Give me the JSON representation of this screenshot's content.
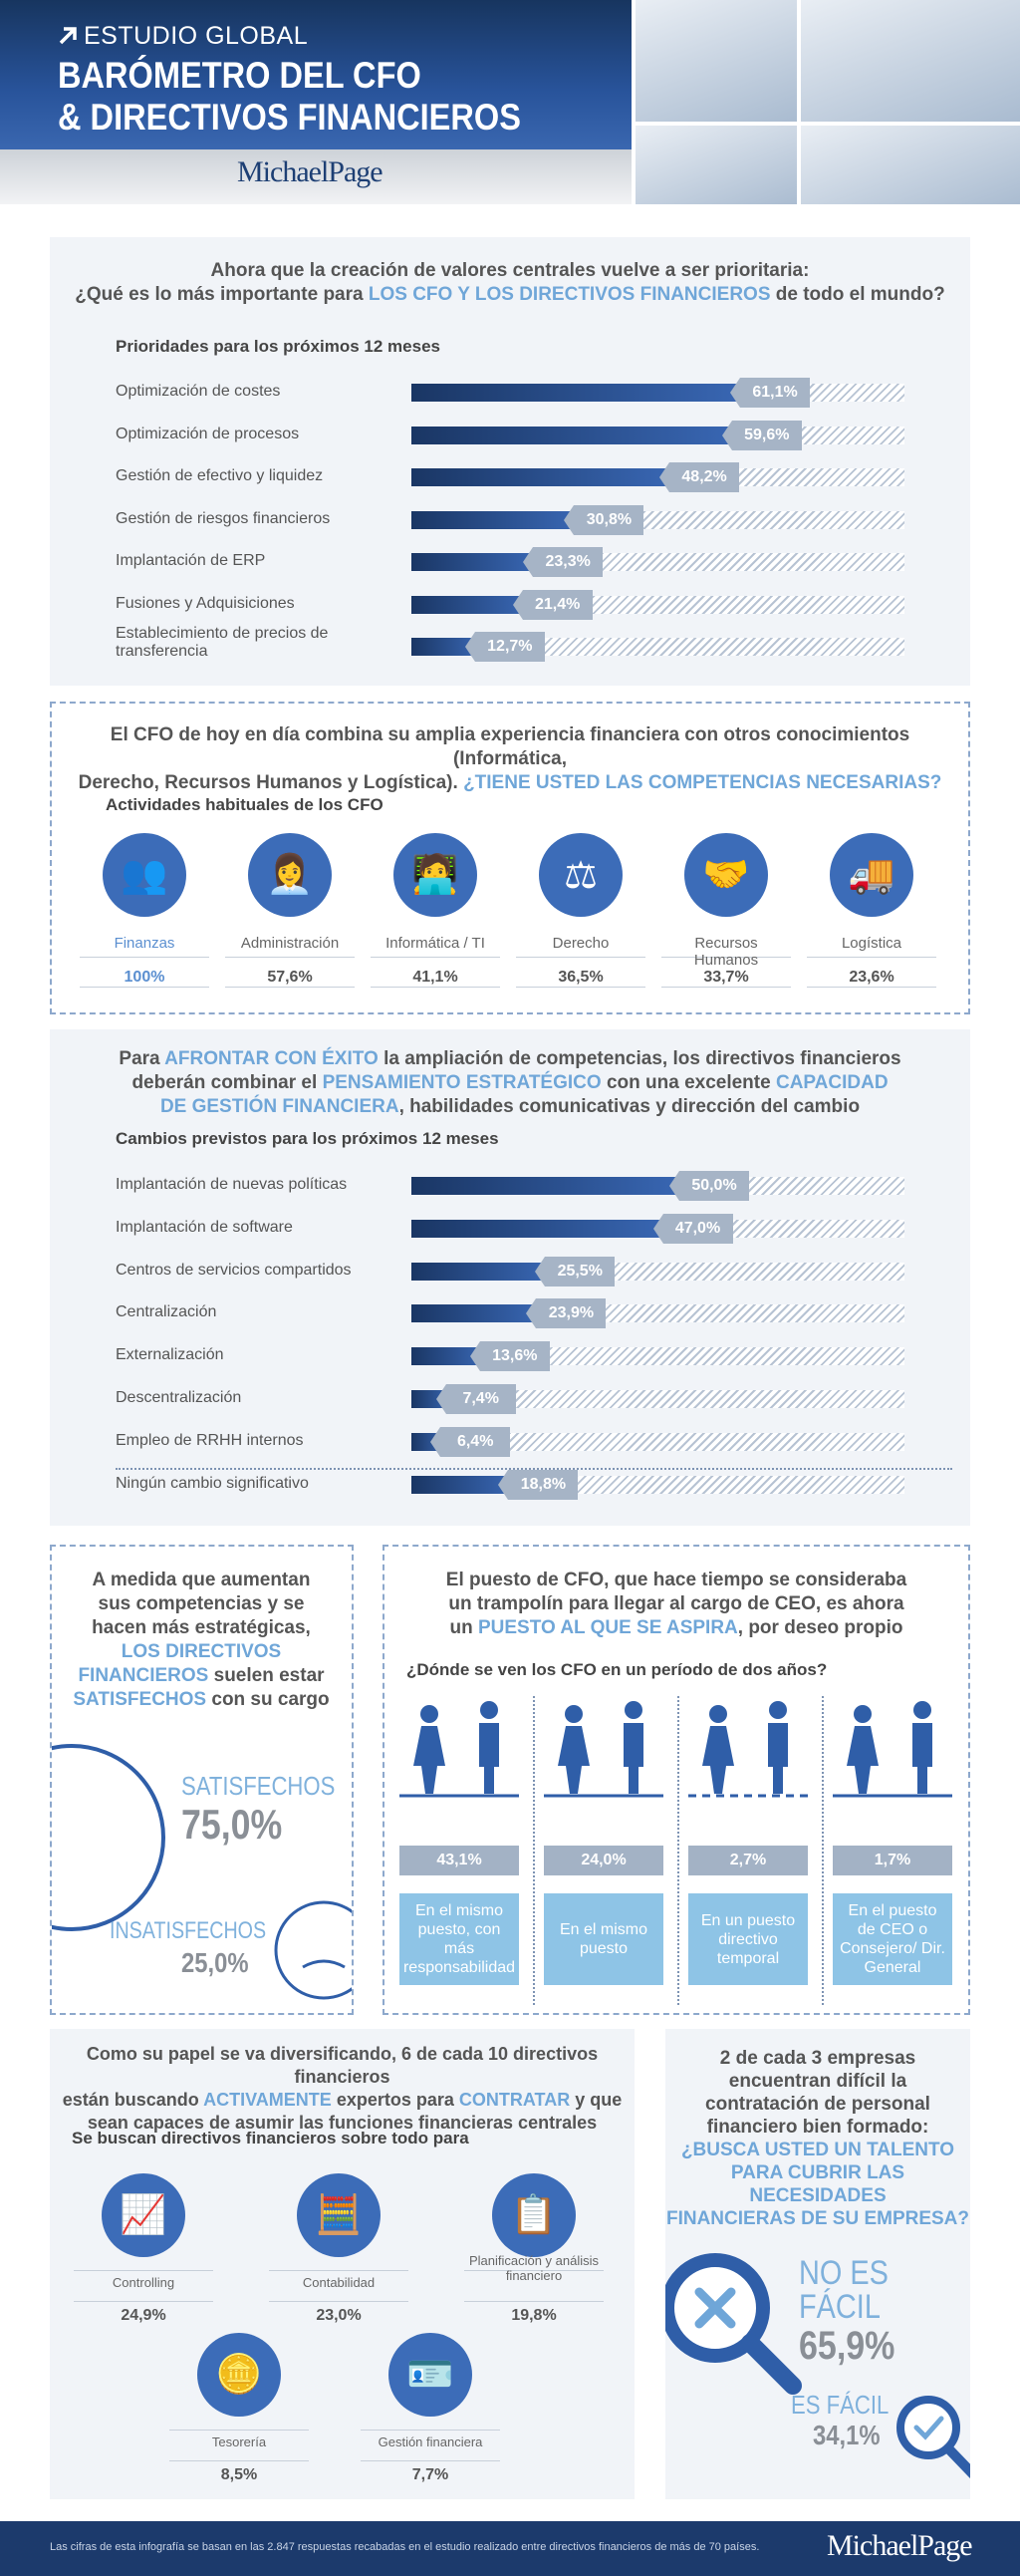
{
  "header": {
    "kicker": "ESTUDIO GLOBAL",
    "title_line1": "BARÓMETRO DEL CFO",
    "title_line2": "& DIRECTIVOS FINANCIEROS",
    "logo": "MichaelPage",
    "colors": {
      "navy": "#1c3a6c",
      "blue": "#3c6cb8",
      "highlight": "#6fa6d8"
    }
  },
  "priorities": {
    "q_line1": "Ahora que la creación de valores centrales vuelve a ser prioritaria:",
    "q_line2_a": "¿Qué es lo más importante para ",
    "q_line2_hl": "LOS CFO Y LOS DIRECTIVOS FINANCIEROS",
    "q_line2_b": " de todo el mundo?",
    "subtitle": "Prioridades para los próximos 12 meses",
    "items": [
      {
        "label": "Optimización de costes",
        "value": 61.1,
        "display": "61,1%"
      },
      {
        "label": "Optimización de procesos",
        "value": 59.6,
        "display": "59,6%"
      },
      {
        "label": "Gestión de efectivo y liquidez",
        "value": 48.2,
        "display": "48,2%"
      },
      {
        "label": "Gestión de riesgos financieros",
        "value": 30.8,
        "display": "30,8%"
      },
      {
        "label": "Implantación de ERP",
        "value": 23.3,
        "display": "23,3%"
      },
      {
        "label": "Fusiones y Adquisiciones",
        "value": 21.4,
        "display": "21,4%"
      },
      {
        "label": "Establecimiento de precios de transferencia",
        "value": 12.7,
        "display": "12,7%"
      }
    ]
  },
  "competencies": {
    "q_line1": "El CFO de hoy en día combina su amplia experiencia financiera con otros conocimientos (Informática,",
    "q_line2_a": "Derecho, Recursos Humanos y Logística). ",
    "q_line2_hl": "¿TIENE USTED LAS COMPETENCIAS NECESARIAS?",
    "subtitle": "Actividades habituales de los CFO",
    "items": [
      {
        "label": "Finanzas",
        "value": "100%",
        "icon": "people-icon"
      },
      {
        "label": "Administración",
        "value": "57,6%",
        "icon": "desk-worker-icon"
      },
      {
        "label": "Informática / TI",
        "value": "41,1%",
        "icon": "computer-user-icon"
      },
      {
        "label": "Derecho",
        "value": "36,5%",
        "icon": "gavel-icon"
      },
      {
        "label": "Recursos Humanos",
        "value": "33,7%",
        "icon": "handshake-icon"
      },
      {
        "label": "Logística",
        "value": "23,6%",
        "icon": "truck-icon"
      }
    ]
  },
  "changes": {
    "q_l1_a": "Para ",
    "q_l1_hl": "AFRONTAR CON ÉXITO",
    "q_l1_b": " la ampliación de competencias, los directivos financieros",
    "q_l2_a": "deberán combinar el ",
    "q_l2_hl1": "PENSAMIENTO ESTRATÉGICO",
    "q_l2_b": " con una excelente ",
    "q_l2_hl2": "CAPACIDAD",
    "q_l3_hl": "DE GESTIÓN FINANCIERA",
    "q_l3_b": ", habilidades comunicativas y dirección del cambio",
    "subtitle": "Cambios previstos para los próximos 12 meses",
    "items": [
      {
        "label": "Implantación de nuevas políticas",
        "value": 50.0,
        "display": "50,0%"
      },
      {
        "label": "Implantación de software",
        "value": 47.0,
        "display": "47,0%"
      },
      {
        "label": "Centros de servicios compartidos",
        "value": 25.5,
        "display": "25,5%"
      },
      {
        "label": "Centralización",
        "value": 23.9,
        "display": "23,9%"
      },
      {
        "label": "Externalización",
        "value": 13.6,
        "display": "13,6%"
      },
      {
        "label": "Descentralización",
        "value": 7.4,
        "display": "7,4%"
      },
      {
        "label": "Empleo de RRHH internos",
        "value": 6.4,
        "display": "6,4%"
      },
      {
        "label": "Ningún cambio significativo",
        "value": 18.8,
        "display": "18,8%"
      }
    ]
  },
  "satisfaction": {
    "l1": "A medida que aumentan",
    "l2": "sus competencias y se",
    "l3": "hacen más estratégicas,",
    "l4_hl": "LOS DIRECTIVOS",
    "l5_hl": "FINANCIEROS",
    "l5_b": " suelen estar",
    "l6_hl": "SATISFECHOS",
    "l6_b": " con su cargo",
    "sat_label": "SATISFECHOS",
    "sat_value": "75,0%",
    "insat_label": "INSATISFECHOS",
    "insat_value": "25,0%"
  },
  "career": {
    "l1": "El puesto de CFO, que hace tiempo se consideraba",
    "l2": "un trampolín para llegar al cargo de CEO, es ahora",
    "l3_a": "un ",
    "l3_hl": "PUESTO AL QUE SE ASPIRA",
    "l3_b": ", por deseo propio",
    "subtitle": "¿Dónde se ven los CFO en un período de dos años?",
    "items": [
      {
        "value": "43,1%",
        "label": "En el mismo puesto, con más responsabilidad"
      },
      {
        "value": "24,0%",
        "label": "En el mismo puesto"
      },
      {
        "value": "2,7%",
        "label": "En un puesto directivo temporal"
      },
      {
        "value": "1,7%",
        "label": "En el puesto de CEO o Consejero/ Dir. General"
      }
    ]
  },
  "hiring": {
    "l1": "Como su papel se va diversificando, 6 de cada 10 directivos financieros",
    "l2_a": "están buscando ",
    "l2_hl1": "ACTIVAMENTE",
    "l2_b": " expertos para ",
    "l2_hl2": "CONTRATAR",
    "l2_c": " y que",
    "l3": "sean capaces de asumir las funciones financieras centrales",
    "subtitle": "Se buscan directivos financieros sobre todo para",
    "items": [
      {
        "label": "Controlling",
        "value": "24,9%",
        "icon": "chart-pen-icon"
      },
      {
        "label": "Contabilidad",
        "value": "23,0%",
        "icon": "calculator-icon"
      },
      {
        "label": "Planificación y análisis financiero",
        "value": "19,8%",
        "icon": "clipboard-chart-icon"
      },
      {
        "label": "Tesorería",
        "value": "8,5%",
        "icon": "coins-icon"
      },
      {
        "label": "Gestión financiera",
        "value": "7,7%",
        "icon": "badge-euro-icon"
      }
    ]
  },
  "talent": {
    "l1": "2 de cada 3 empresas",
    "l2": "encuentran difícil la",
    "l3": "contratación de personal",
    "l4": "financiero bien formado:",
    "l5_hl": "¿BUSCA USTED UN TALENTO",
    "l6_hl": "PARA CUBRIR LAS NECESIDADES",
    "l7_hl": "FINANCIERAS DE SU EMPRESA?",
    "no_l1": "NO ES",
    "no_l2": "FÁCIL",
    "no_value": "65,9%",
    "yes_label": "ES FÁCIL",
    "yes_value": "34,1%"
  },
  "footer": {
    "note": "Las cifras de esta infografía se basan en las 2.847 respuestas recabadas en el estudio realizado entre directivos financieros de más de 70 países.",
    "logo": "MichaelPage"
  }
}
